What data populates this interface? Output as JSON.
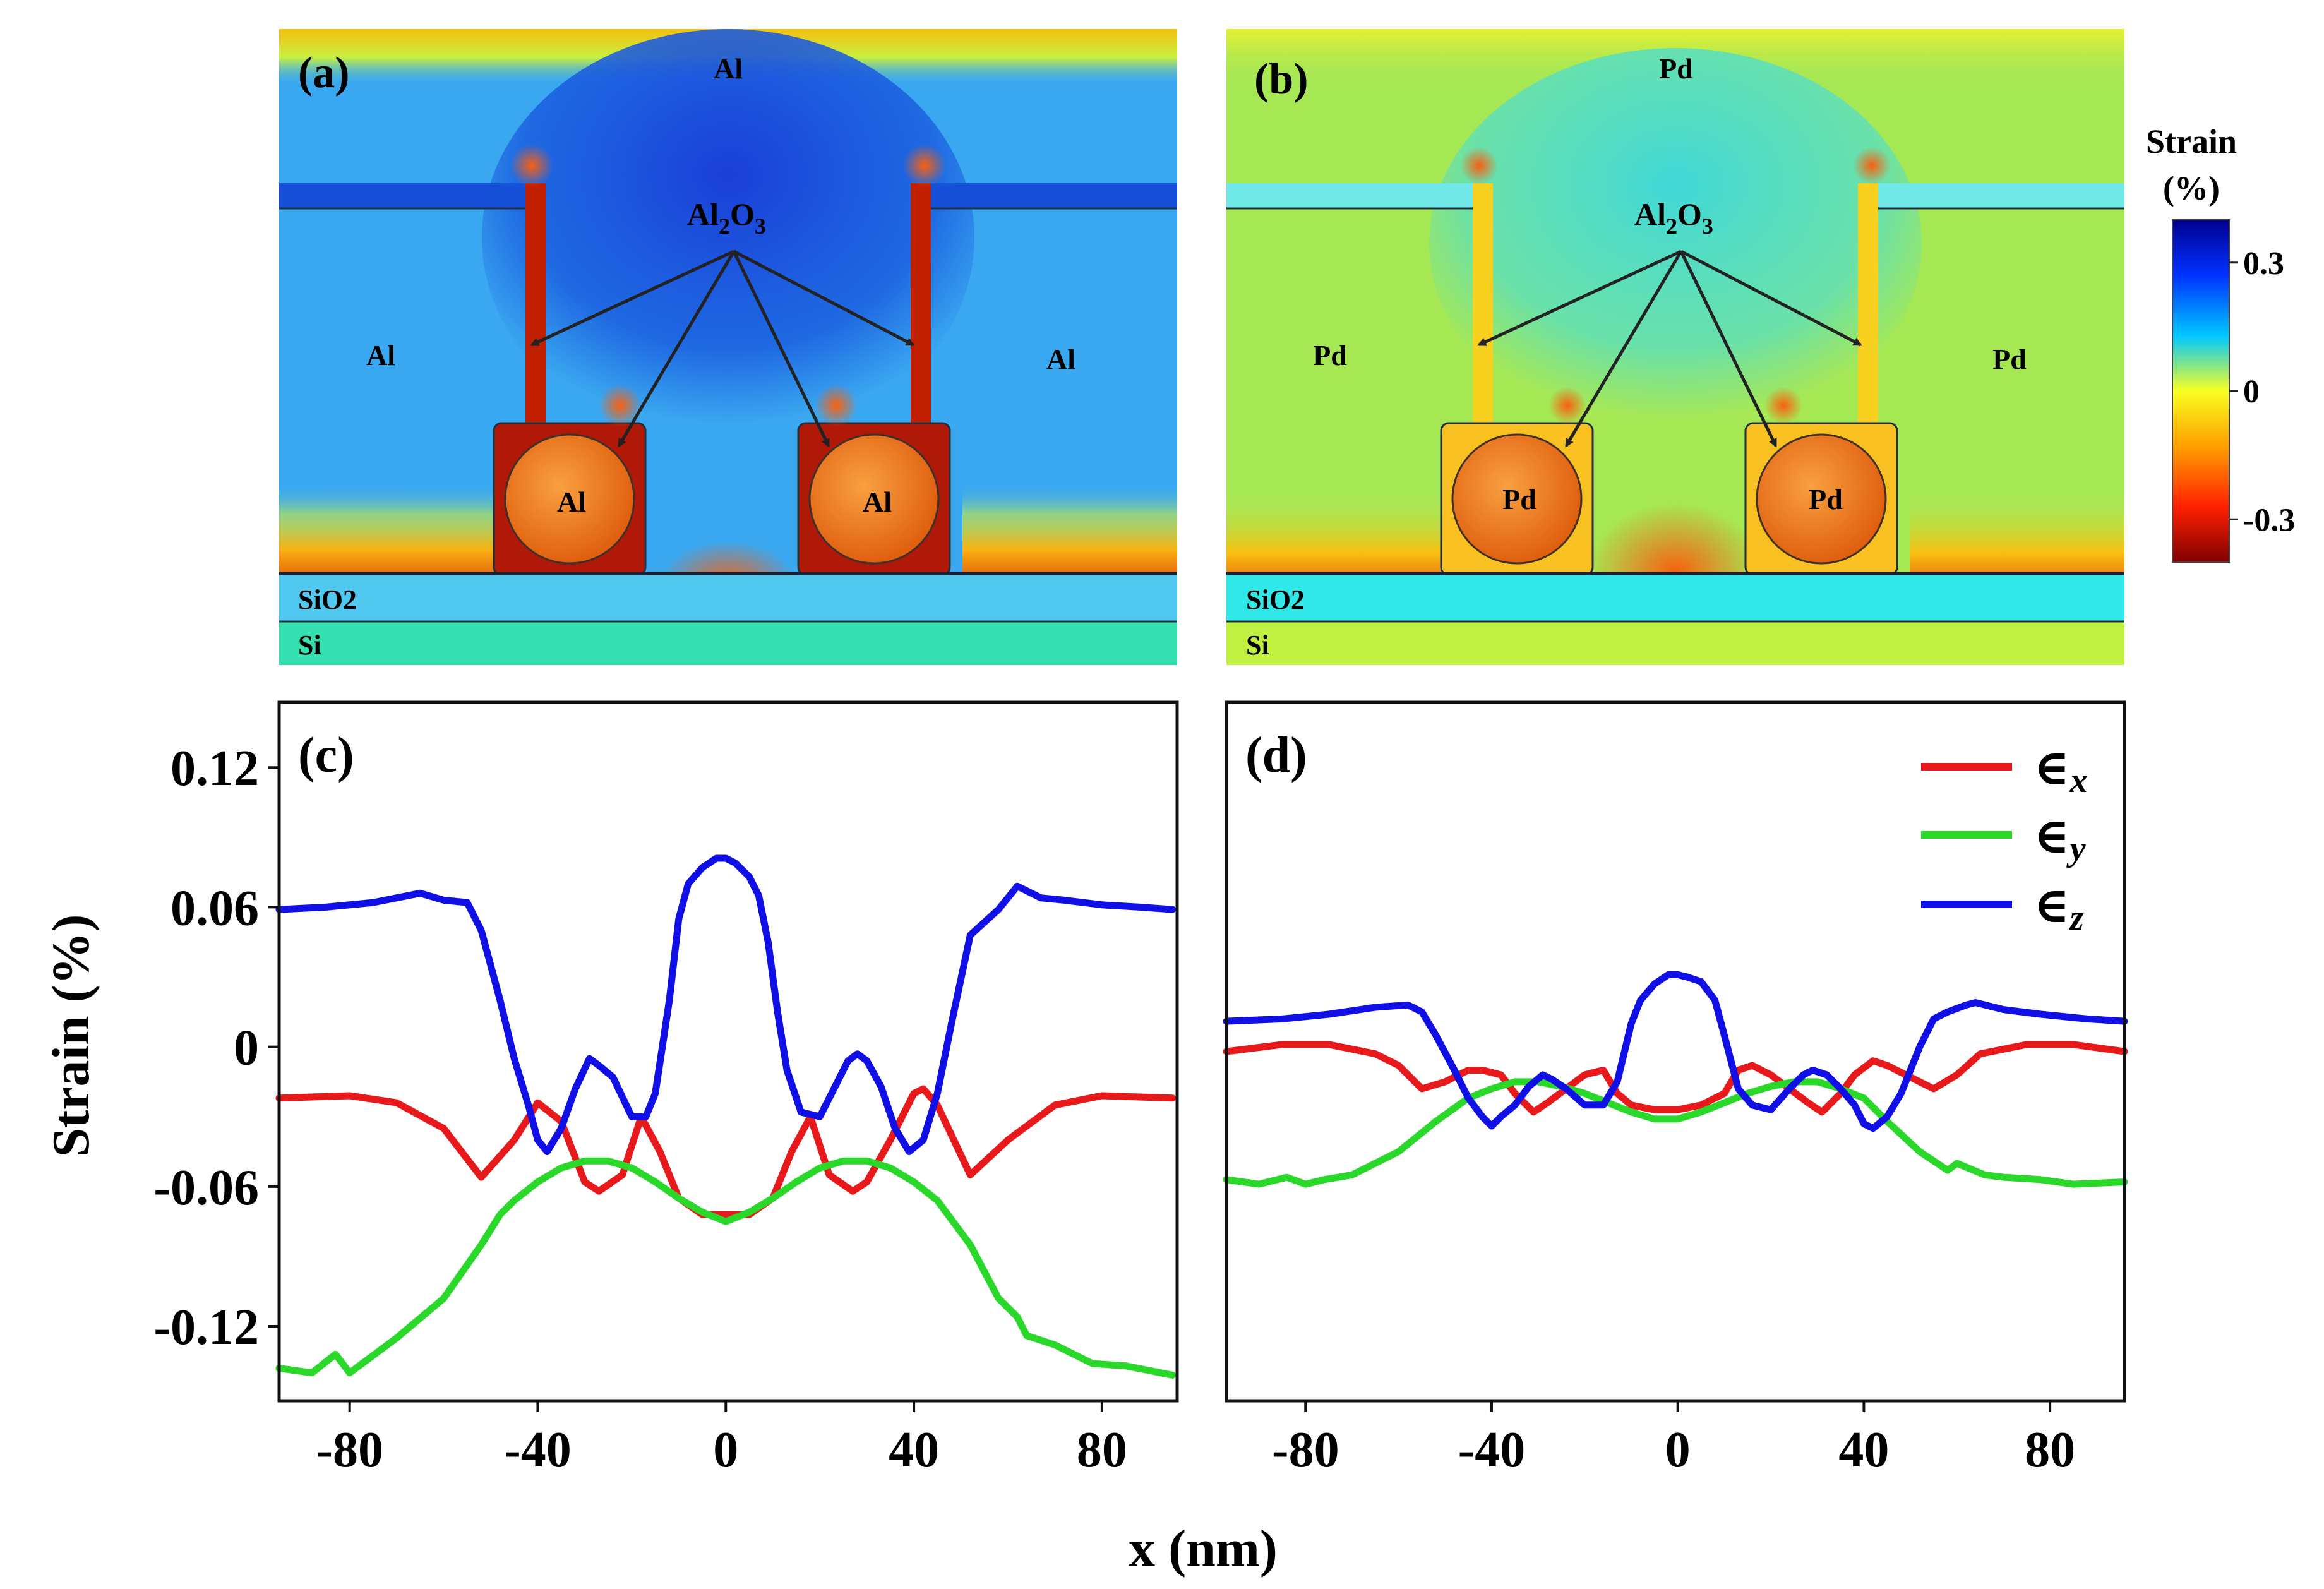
{
  "maps": {
    "colorbar": {
      "title_line1": "Strain",
      "title_line2": "(%)",
      "ticks": [
        {
          "label": "0.3",
          "value": 0.3
        },
        {
          "label": "0",
          "value": 0
        },
        {
          "label": "-0.3",
          "value": -0.3
        }
      ],
      "range": [
        -0.4,
        0.4
      ],
      "colors": [
        "#00008f",
        "#0030ff",
        "#00c8ff",
        "#f8ff20",
        "#ffa000",
        "#ff2000",
        "#7f0000"
      ]
    },
    "panels": [
      {
        "label": "(a)",
        "metal": "Al",
        "top_label": "Al",
        "left_label": "Al",
        "right_label": "Al",
        "wire_left_label": "Al",
        "wire_right_label": "Al",
        "oxide_label": "Al2O3",
        "oxide_base": "Al",
        "oxide_sub1": "2",
        "oxide_mid": "O",
        "oxide_sub2": "3",
        "sio2_label": "SiO2",
        "si_label": "Si",
        "background_color": "#3aa8f0",
        "top_strip_color": "#f4d820",
        "center_color": "#1a5ee0",
        "bottom_hot_color": "#e83010",
        "pillar_color": "#c02000",
        "pillar_lining_color": "#1650d8",
        "wire_color": "#f08020",
        "sio2_color": "#50c8f0",
        "si_color": "#34e0b0"
      },
      {
        "label": "(b)",
        "metal": "Pd",
        "top_label": "Pd",
        "left_label": "Pd",
        "right_label": "Pd",
        "wire_left_label": "Pd",
        "wire_right_label": "Pd",
        "oxide_label": "Al2O3",
        "oxide_base": "Al",
        "oxide_sub1": "2",
        "oxide_mid": "O",
        "oxide_sub2": "3",
        "sio2_label": "SiO2",
        "si_label": "Si",
        "background_color": "#a6e854",
        "top_strip_color": "#d6f030",
        "center_color": "#48e0c0",
        "bottom_hot_color": "#f05010",
        "pillar_color": "#f8d020",
        "pillar_lining_color": "#70e8e8",
        "wire_color": "#f08020",
        "sio2_color": "#30e8e8",
        "si_color": "#c0f040"
      }
    ]
  },
  "chart_data": [
    {
      "type": "line",
      "panel_label": "(c)",
      "xlabel": "x (nm)",
      "ylabel": "Strain (%)",
      "xlim": [
        -95,
        96
      ],
      "ylim": [
        -0.152,
        0.148
      ],
      "xticks": [
        -80,
        -40,
        0,
        40,
        80
      ],
      "xtick_labels": [
        "-80",
        "-40",
        "0",
        "40",
        "80"
      ],
      "yticks": [
        0.12,
        0.06,
        0,
        -0.06,
        -0.12
      ],
      "ytick_labels": [
        "0.12",
        "0.06",
        "0",
        "-0.06",
        "-0.12"
      ],
      "grid": false,
      "series": [
        {
          "name": "∈x",
          "color": "#e8191b",
          "x": [
            -95,
            -80,
            -70,
            -60,
            -52,
            -45,
            -40,
            -35,
            -30,
            -27,
            -22,
            -18,
            -14,
            -10,
            -5,
            0,
            5,
            10,
            14,
            18,
            22,
            27,
            30,
            35,
            40,
            42,
            45,
            52,
            60,
            70,
            80,
            95
          ],
          "y": [
            -0.022,
            -0.021,
            -0.024,
            -0.035,
            -0.056,
            -0.04,
            -0.024,
            -0.032,
            -0.058,
            -0.062,
            -0.055,
            -0.03,
            -0.045,
            -0.065,
            -0.072,
            -0.072,
            -0.072,
            -0.065,
            -0.045,
            -0.03,
            -0.055,
            -0.062,
            -0.058,
            -0.04,
            -0.02,
            -0.018,
            -0.025,
            -0.055,
            -0.04,
            -0.025,
            -0.021,
            -0.022
          ]
        },
        {
          "name": "∈y",
          "color": "#2ad82a",
          "x": [
            -95,
            -88,
            -83,
            -80,
            -78,
            -70,
            -60,
            -52,
            -48,
            -45,
            -40,
            -35,
            -30,
            -25,
            -20,
            -15,
            -10,
            -5,
            0,
            5,
            10,
            15,
            20,
            25,
            30,
            35,
            40,
            45,
            52,
            58,
            62,
            64,
            70,
            78,
            85,
            95
          ],
          "y": [
            -0.138,
            -0.14,
            -0.132,
            -0.14,
            -0.137,
            -0.125,
            -0.108,
            -0.085,
            -0.072,
            -0.066,
            -0.058,
            -0.052,
            -0.049,
            -0.049,
            -0.052,
            -0.058,
            -0.065,
            -0.071,
            -0.075,
            -0.071,
            -0.065,
            -0.058,
            -0.052,
            -0.049,
            -0.049,
            -0.052,
            -0.058,
            -0.066,
            -0.085,
            -0.108,
            -0.116,
            -0.124,
            -0.128,
            -0.136,
            -0.137,
            -0.141
          ]
        },
        {
          "name": "∈z",
          "color": "#1010e6",
          "x": [
            -95,
            -85,
            -75,
            -65,
            -60,
            -55,
            -52,
            -48,
            -45,
            -42,
            -40,
            -38,
            -35,
            -32,
            -29,
            -27,
            -24,
            -20,
            -17,
            -15,
            -12,
            -10,
            -8,
            -5,
            -2,
            0,
            2,
            5,
            7,
            9,
            11,
            13,
            16,
            20,
            23,
            26,
            28,
            30,
            33,
            36,
            39,
            42,
            45,
            48,
            52,
            58,
            62,
            64,
            67,
            72,
            80,
            88,
            95
          ],
          "y": [
            0.059,
            0.06,
            0.062,
            0.066,
            0.063,
            0.062,
            0.05,
            0.02,
            -0.005,
            -0.025,
            -0.04,
            -0.045,
            -0.035,
            -0.018,
            -0.005,
            -0.008,
            -0.013,
            -0.03,
            -0.03,
            -0.02,
            0.02,
            0.055,
            0.07,
            0.077,
            0.081,
            0.081,
            0.079,
            0.073,
            0.065,
            0.045,
            0.015,
            -0.01,
            -0.028,
            -0.03,
            -0.018,
            -0.006,
            -0.003,
            -0.006,
            -0.017,
            -0.035,
            -0.045,
            -0.04,
            -0.02,
            0.01,
            0.048,
            0.059,
            0.069,
            0.067,
            0.064,
            0.063,
            0.061,
            0.06,
            0.059
          ]
        }
      ]
    },
    {
      "type": "line",
      "panel_label": "(d)",
      "xlabel": "x (nm)",
      "ylabel": "Strain (%)",
      "xlim": [
        -97,
        96
      ],
      "ylim": [
        -0.152,
        0.148
      ],
      "xticks": [
        -80,
        -40,
        0,
        40,
        80
      ],
      "xtick_labels": [
        "-80",
        "-40",
        "0",
        "40",
        "80"
      ],
      "grid": false,
      "legend": {
        "position": "top-right",
        "labels": [
          "∈",
          "∈",
          "∈"
        ],
        "subscripts": [
          "x",
          "y",
          "z"
        ]
      },
      "series": [
        {
          "name": "∈x",
          "color": "#e8191b",
          "x": [
            -97,
            -85,
            -75,
            -65,
            -60,
            -55,
            -50,
            -45,
            -42,
            -38,
            -35,
            -31,
            -28,
            -24,
            -20,
            -16,
            -13,
            -10,
            -5,
            0,
            5,
            10,
            13,
            16,
            20,
            24,
            28,
            31,
            35,
            38,
            42,
            45,
            50,
            55,
            60,
            65,
            75,
            85,
            96
          ],
          "y": [
            -0.002,
            0.001,
            0.001,
            -0.003,
            -0.008,
            -0.018,
            -0.015,
            -0.01,
            -0.01,
            -0.012,
            -0.02,
            -0.028,
            -0.024,
            -0.018,
            -0.012,
            -0.01,
            -0.02,
            -0.025,
            -0.027,
            -0.027,
            -0.025,
            -0.02,
            -0.01,
            -0.008,
            -0.012,
            -0.018,
            -0.024,
            -0.028,
            -0.02,
            -0.012,
            -0.006,
            -0.008,
            -0.013,
            -0.018,
            -0.012,
            -0.003,
            0.001,
            0.001,
            -0.002
          ]
        },
        {
          "name": "∈y",
          "color": "#2ad82a",
          "x": [
            -97,
            -90,
            -84,
            -80,
            -76,
            -70,
            -60,
            -52,
            -45,
            -40,
            -35,
            -30,
            -25,
            -20,
            -15,
            -10,
            -5,
            0,
            5,
            10,
            15,
            20,
            25,
            30,
            35,
            40,
            45,
            52,
            58,
            60,
            66,
            70,
            78,
            85,
            96
          ],
          "y": [
            -0.057,
            -0.059,
            -0.056,
            -0.059,
            -0.057,
            -0.055,
            -0.045,
            -0.032,
            -0.022,
            -0.018,
            -0.015,
            -0.015,
            -0.017,
            -0.02,
            -0.024,
            -0.028,
            -0.031,
            -0.031,
            -0.028,
            -0.024,
            -0.02,
            -0.017,
            -0.015,
            -0.015,
            -0.018,
            -0.022,
            -0.032,
            -0.045,
            -0.053,
            -0.05,
            -0.055,
            -0.056,
            -0.057,
            -0.059,
            -0.058
          ]
        },
        {
          "name": "∈z",
          "color": "#1010e6",
          "x": [
            -97,
            -85,
            -75,
            -65,
            -58,
            -55,
            -52,
            -48,
            -45,
            -42,
            -40,
            -38,
            -35,
            -32,
            -29,
            -27,
            -24,
            -20,
            -16,
            -13,
            -10,
            -8,
            -5,
            -2,
            0,
            2,
            5,
            8,
            10,
            13,
            16,
            20,
            24,
            27,
            29,
            32,
            35,
            38,
            40,
            42,
            45,
            48,
            52,
            55,
            58,
            62,
            64,
            70,
            78,
            88,
            96
          ],
          "y": [
            0.011,
            0.012,
            0.014,
            0.017,
            0.018,
            0.015,
            0.005,
            -0.01,
            -0.022,
            -0.03,
            -0.034,
            -0.03,
            -0.025,
            -0.017,
            -0.012,
            -0.014,
            -0.018,
            -0.025,
            -0.025,
            -0.015,
            0.01,
            0.02,
            0.027,
            0.031,
            0.031,
            0.03,
            0.028,
            0.02,
            0.005,
            -0.018,
            -0.025,
            -0.027,
            -0.018,
            -0.012,
            -0.01,
            -0.012,
            -0.018,
            -0.025,
            -0.033,
            -0.035,
            -0.03,
            -0.02,
            0.0,
            0.012,
            0.015,
            0.018,
            0.019,
            0.016,
            0.014,
            0.012,
            0.011
          ]
        }
      ]
    }
  ]
}
